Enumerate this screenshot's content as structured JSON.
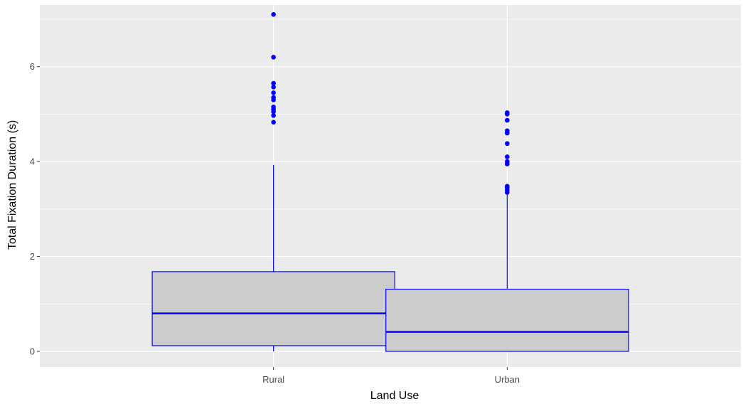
{
  "chart_data": {
    "type": "boxplot",
    "title": "",
    "xlabel": "Land Use",
    "ylabel": "Total Fixation Duration (s)",
    "ylim": [
      -0.33,
      7.3
    ],
    "y_ticks": [
      0,
      2,
      4,
      6
    ],
    "y_minor_ticks": [
      1,
      3,
      5,
      7
    ],
    "grid": true,
    "colors": {
      "panel": "#ebebeb",
      "grid": "#ffffff",
      "box_fill": "#cccccc",
      "box_stroke": "#0000ff",
      "outlier": "#0000ff"
    },
    "categories": [
      "Rural",
      "Urban"
    ],
    "boxes": [
      {
        "category": "Rural",
        "min": 0.0,
        "q1": 0.12,
        "median": 0.8,
        "q3": 1.68,
        "max": 3.93,
        "outliers": [
          4.83,
          4.97,
          5.05,
          5.1,
          5.15,
          5.3,
          5.35,
          5.45,
          5.57,
          5.65,
          6.2,
          7.1
        ]
      },
      {
        "category": "Urban",
        "min": 0.0,
        "q1": 0.0,
        "median": 0.41,
        "q3": 1.31,
        "max": 3.31,
        "outliers": [
          3.35,
          3.4,
          3.45,
          3.48,
          3.95,
          4.0,
          4.1,
          4.38,
          4.6,
          4.65,
          4.87,
          5.0,
          5.03
        ]
      }
    ]
  }
}
